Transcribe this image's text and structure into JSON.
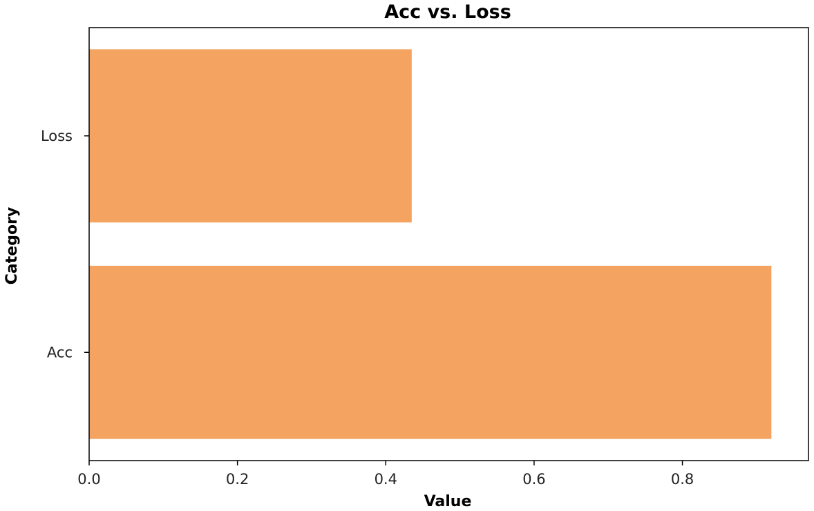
{
  "chart_data": {
    "type": "bar",
    "orientation": "horizontal",
    "title": "Acc vs. Loss",
    "xlabel": "Value",
    "ylabel": "Category",
    "categories": [
      "Acc",
      "Loss"
    ],
    "values": [
      0.92,
      0.435
    ],
    "xlim": [
      0,
      0.97
    ],
    "xticks": [
      0.0,
      0.2,
      0.4,
      0.6,
      0.8
    ],
    "xtick_labels": [
      "0.0",
      "0.2",
      "0.4",
      "0.6",
      "0.8"
    ],
    "bar_color": "#f4a460",
    "grid": false
  }
}
